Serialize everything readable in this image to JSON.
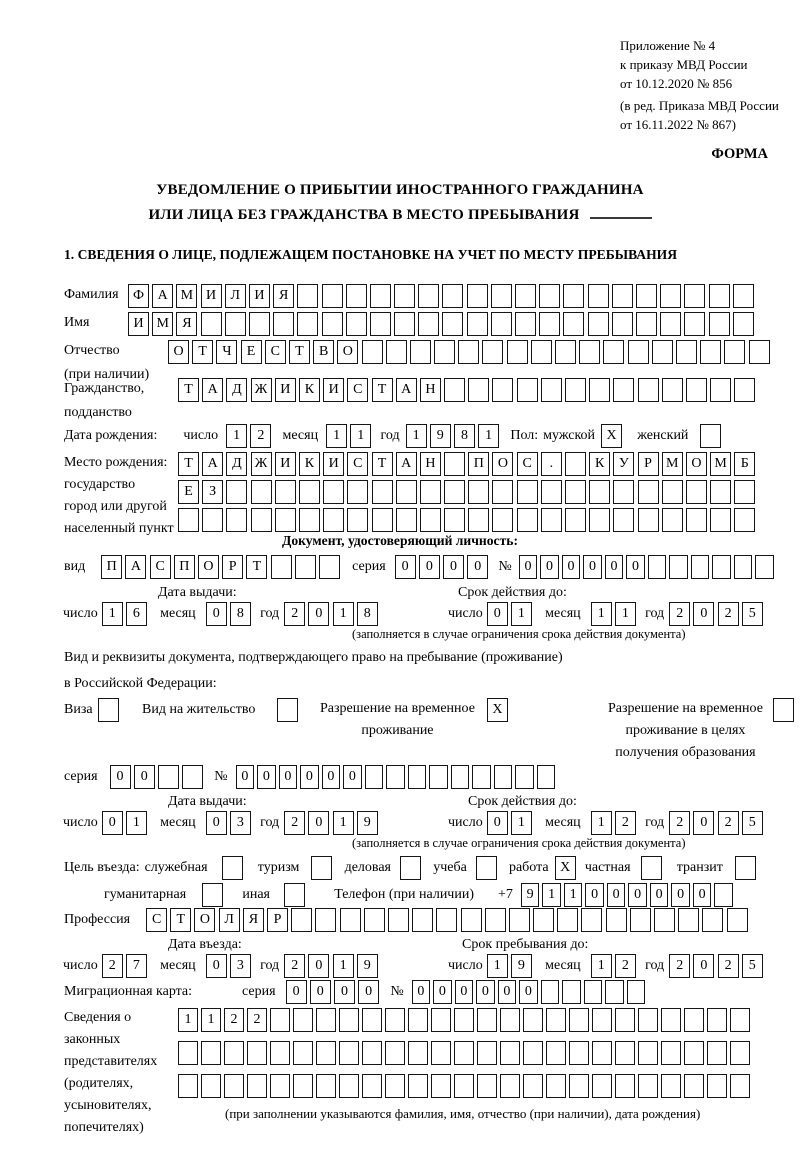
{
  "header": {
    "line1": "Приложение № 4",
    "line2": "к приказу МВД России",
    "line3": "от 10.12.2020 № 856",
    "line4": "(в ред. Приказа МВД России",
    "line5": "от 16.11.2022 № 867)",
    "form_label": "ФОРМА"
  },
  "title": {
    "line1": "УВЕДОМЛЕНИЕ О ПРИБЫТИИ ИНОСТРАННОГО ГРАЖДАНИНА",
    "line2": "ИЛИ ЛИЦА БЕЗ ГРАЖДАНСТВА В МЕСТО ПРЕБЫВАНИЯ"
  },
  "section1": {
    "title": "1. СВЕДЕНИЯ О ЛИЦЕ, ПОДЛЕЖАЩЕМ ПОСТАНОВКЕ НА УЧЕТ ПО МЕСТУ ПРЕБЫВАНИЯ"
  },
  "dmy": {
    "day": "число",
    "month": "месяц",
    "year": "год"
  },
  "validity_note": "(заполняется в случае ограничения срока действия документа)",
  "surname": {
    "label": "Фамилия",
    "value": "ФАМИЛИЯ"
  },
  "firstname": {
    "label": "Имя",
    "value": "ИМЯ"
  },
  "patronymic": {
    "label1": "Отчество",
    "label2": "(при наличии)",
    "value": "ОТЧЕСТВО"
  },
  "citizenship": {
    "label1": "Гражданство,",
    "label2": "подданство",
    "value": "ТАДЖИКИСТАН"
  },
  "birth": {
    "label": "Дата рождения:",
    "day": "12",
    "month": "11",
    "year": "1981"
  },
  "sex": {
    "label": "Пол:",
    "male_label": "мужской",
    "male": "X",
    "female_label": "женский",
    "female": ""
  },
  "birthplace": {
    "label1": "Место рождения:",
    "label2": "государство",
    "label3": "город или другой",
    "label4": "населенный пункт",
    "row1": "ТАДЖИКИСТАН ПОС. КУРМОМБ",
    "row2": "ЕЗ",
    "row3": ""
  },
  "iddoc": {
    "title": "Документ, удостоверяющий личность:",
    "type_label": "вид",
    "type": "ПАСПОРТ",
    "series_label": "серия",
    "series": "0000",
    "number_label": "№",
    "number": "000000",
    "issue_header": "Дата выдачи:",
    "issue": {
      "day": "16",
      "month": "08",
      "year": "2018"
    },
    "valid_header": "Срок действия до:",
    "valid": {
      "day": "01",
      "month": "11",
      "year": "2025"
    }
  },
  "resdoc": {
    "intro1": "Вид и реквизиты документа, подтверждающего право на пребывание (проживание)",
    "intro2": "в Российской Федерации:",
    "visa_label": "Виза",
    "visa": "",
    "residence_label": "Вид на жительство",
    "residence": "",
    "rvp_label1": "Разрешение на временное",
    "rvp_label2": "проживание",
    "rvp": "X",
    "rvpo_label1": "Разрешение на временное",
    "rvpo_label2": "проживание в целях",
    "rvpo_label3": "получения образования",
    "rvpo": "",
    "series_label": "серия",
    "series": "00",
    "number_label": "№",
    "number": "000000",
    "issue_header": "Дата выдачи:",
    "issue": {
      "day": "01",
      "month": "03",
      "year": "2019"
    },
    "valid_header": "Срок действия до:",
    "valid": {
      "day": "01",
      "month": "12",
      "year": "2025"
    }
  },
  "purpose": {
    "label": "Цель въезда:",
    "official_label": "служебная",
    "official": "",
    "tourism_label": "туризм",
    "tourism": "",
    "business_label": "деловая",
    "business": "",
    "study_label": "учеба",
    "study": "",
    "work_label": "работа",
    "work": "X",
    "private_label": "частная",
    "private": "",
    "transit_label": "транзит",
    "transit": "",
    "humanitarian_label": "гуманитарная",
    "humanitarian": "",
    "other_label": "иная",
    "other": ""
  },
  "phone": {
    "label": "Телефон (при наличии)",
    "prefix": "+7",
    "value": "911000000"
  },
  "profession": {
    "label": "Профессия",
    "value": "СТОЛЯР"
  },
  "entry": {
    "header": "Дата въезда:",
    "day": "27",
    "month": "03",
    "year": "2019"
  },
  "stay": {
    "header": "Срок пребывания до:",
    "day": "19",
    "month": "12",
    "year": "2025"
  },
  "migration_card": {
    "label": "Миграционная карта:",
    "series_label": "серия",
    "series": "0000",
    "number_label": "№",
    "number": "000000"
  },
  "legal": {
    "label1": "Сведения о",
    "label2": "законных",
    "label3": "представителях",
    "label4": "(родителях,",
    "label5": "усыновителях,",
    "label6": "попечителях)",
    "row1": "1122",
    "row2": "",
    "row3": "",
    "note": "(при заполнении указываются фамилия, имя, отчество (при наличии), дата рождения)"
  }
}
